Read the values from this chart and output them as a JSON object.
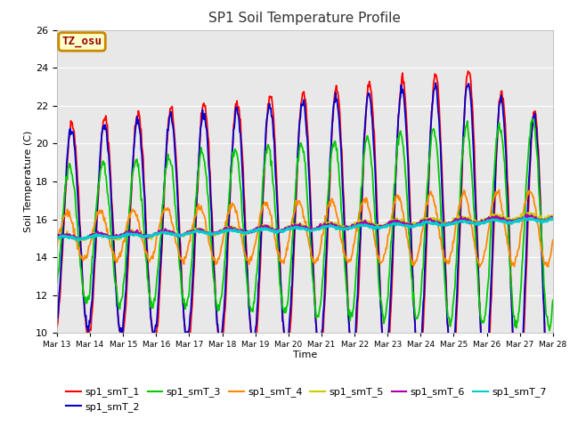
{
  "title": "SP1 Soil Temperature Profile",
  "xlabel": "Time",
  "ylabel": "Soil Temperature (C)",
  "ylim": [
    10,
    26
  ],
  "annotation_text": "TZ_osu",
  "annotation_bg": "#ffffcc",
  "annotation_border": "#cc8800",
  "series_colors": {
    "sp1_smT_1": "#ff0000",
    "sp1_smT_2": "#0000cc",
    "sp1_smT_3": "#00cc00",
    "sp1_smT_4": "#ff8800",
    "sp1_smT_5": "#cccc00",
    "sp1_smT_6": "#aa00aa",
    "sp1_smT_7": "#00cccc"
  },
  "fig_bg": "#ffffff",
  "plot_bg": "#e8e8e8",
  "n_days": 15,
  "start_day": 13,
  "points_per_day": 48
}
